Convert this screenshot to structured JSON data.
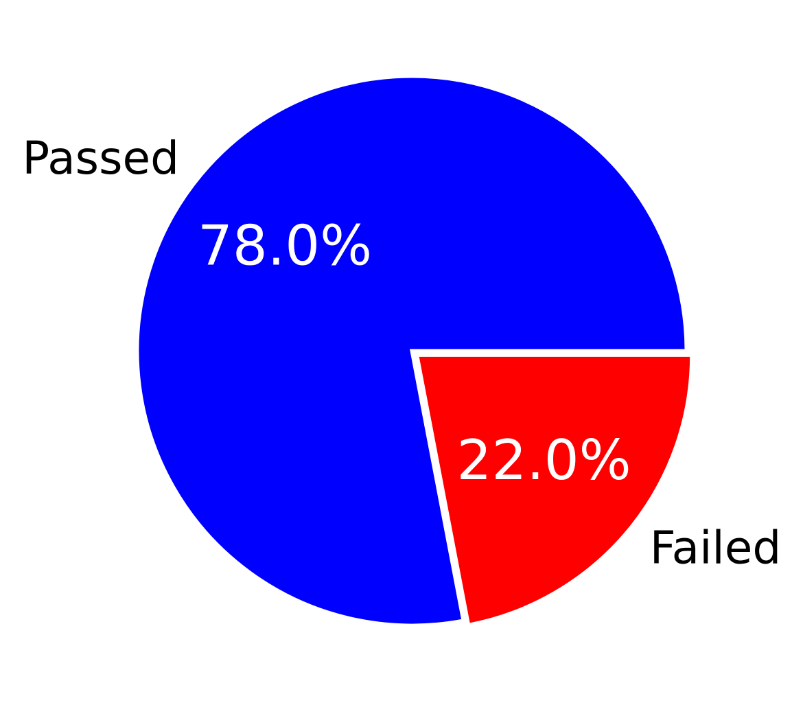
{
  "chart_data": {
    "type": "pie",
    "title": "",
    "labels": [
      "Passed",
      "Failed"
    ],
    "values": [
      78.0,
      22.0
    ],
    "value_labels": [
      "78.0%",
      "22.0%"
    ],
    "colors": [
      "#0000ff",
      "#ff0000"
    ],
    "exploded": [
      false,
      true
    ],
    "label_color": "#000000",
    "value_label_color": "#ffffff",
    "slice_edge_color": "#ffffff",
    "start_angle_deg": 0,
    "direction": "counterclockwise"
  }
}
